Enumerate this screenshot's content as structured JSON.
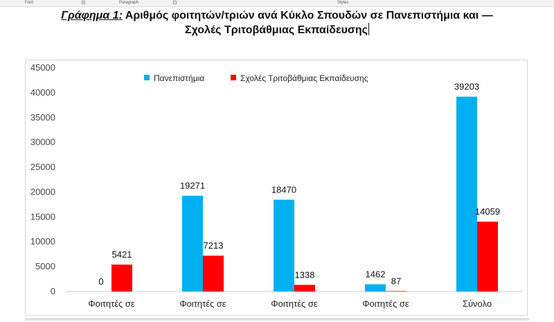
{
  "ribbon": {
    "groups": [
      "Font",
      "Paragraph",
      "Styles"
    ]
  },
  "heading": {
    "lead": "Γράφημα 1:",
    "line1": "Αριθμός φοιτητών/τριών ανά Κύκλο Σπουδών σε Πανεπιστήμια και —",
    "line2": "Σχολές Τριτοβάθμιας Εκπαίδευσης"
  },
  "chart_data": {
    "type": "bar",
    "title": "",
    "xlabel": "",
    "ylabel": "",
    "ylim": [
      0,
      45000
    ],
    "yticks": [
      0,
      5000,
      10000,
      15000,
      20000,
      25000,
      30000,
      35000,
      40000,
      45000
    ],
    "grid": false,
    "legend_position": "top-center",
    "categories": [
      "Φοιτητές σε",
      "Φοιτητές σε",
      "Φοιτητές σε",
      "Φοιτητές σε",
      "Σύνολο"
    ],
    "series": [
      {
        "name": "Πανεπιστήμια",
        "color": "#00b0f0",
        "values": [
          0,
          19271,
          18470,
          1462,
          39203
        ]
      },
      {
        "name": "Σχολές Τριτοβάθμιας Εκπαίδευσης",
        "color": "#ff0000",
        "values": [
          5421,
          7213,
          1338,
          87,
          14059
        ]
      }
    ]
  }
}
